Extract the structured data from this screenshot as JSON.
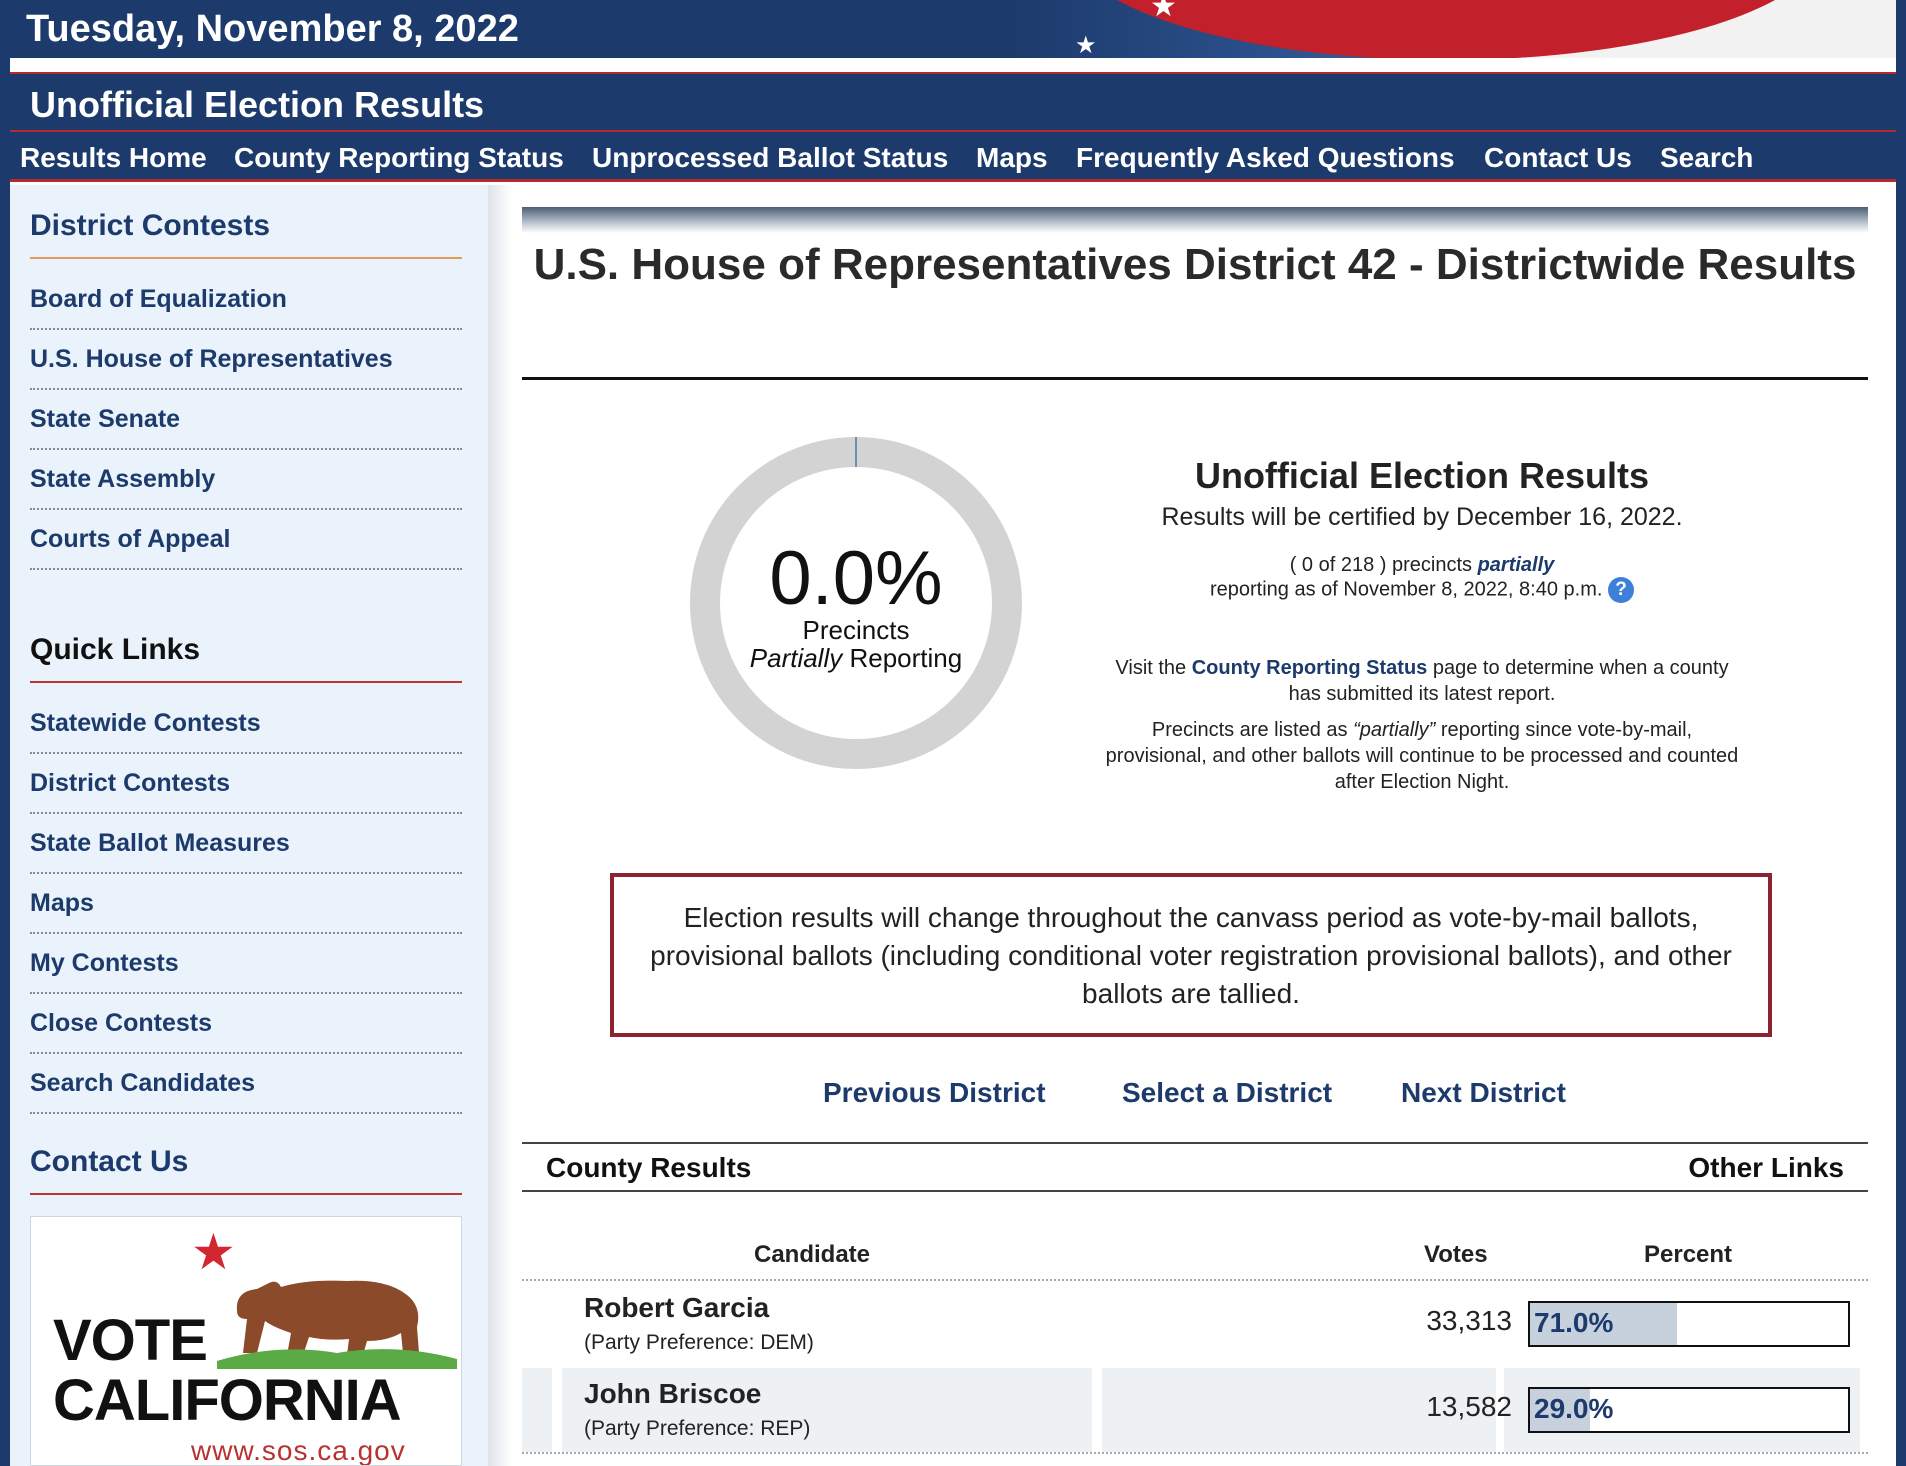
{
  "header": {
    "date": "Tuesday, November 8, 2022",
    "title": "Unofficial Election Results"
  },
  "nav": {
    "items": [
      "Results Home",
      "County Reporting Status",
      "Unprocessed Ballot Status",
      "Maps",
      "Frequently Asked Questions",
      "Contact Us",
      "Search"
    ]
  },
  "sidebar": {
    "district_heading": "District Contests",
    "district_links": [
      "Board of Equalization",
      "U.S. House of Representatives",
      "State Senate",
      "State Assembly",
      "Courts of Appeal"
    ],
    "quick_heading": "Quick Links",
    "quick_links": [
      "Statewide Contests",
      "District Contests",
      "State Ballot Measures",
      "Maps",
      "My Contests",
      "Close Contests",
      "Search Candidates"
    ],
    "contact_heading": "Contact Us",
    "vote_logo": {
      "line1": "VOTE",
      "line2": "CALIFORNIA",
      "url": "www.sos.ca.gov"
    }
  },
  "main": {
    "title": "U.S. House of Representatives District 42 - Districtwide Results",
    "donut": {
      "percent_label": "0.0%",
      "value": 0.0,
      "line1": "Precincts",
      "line2_em": "Partially",
      "line2_rest": " Reporting"
    },
    "info": {
      "heading": "Unofficial Election Results",
      "certified": "Results will be certified by December 16, 2022.",
      "precincts_pre": "( 0 of 218 ) precincts ",
      "precincts_em": "partially",
      "reporting_time": "reporting as of November 8, 2022, 8:40 p.m.",
      "help_glyph": "?",
      "visit_pre": "Visit the ",
      "visit_link": "County Reporting Status",
      "visit_post": " page to determine when a county has submitted its latest report.",
      "partial_pre": "Precincts are listed as ",
      "partial_em": "“partially”",
      "partial_post": " reporting since vote-by-mail, provisional, and other ballots will continue to be processed and counted after Election Night."
    },
    "notice": "Election results will change throughout the canvass period as vote-by-mail ballots, provisional ballots (including conditional voter registration provisional ballots), and other ballots are tallied.",
    "district_nav": {
      "prev": "Previous District",
      "select": "Select a District",
      "next": "Next District"
    },
    "tabs": {
      "county": "County Results",
      "other": "Other Links"
    },
    "table": {
      "headers": {
        "candidate": "Candidate",
        "votes": "Votes",
        "percent": "Percent"
      },
      "rows": [
        {
          "name": "Robert Garcia",
          "party": "(Party Preference: DEM)",
          "votes": "33,313",
          "percent": "71.0%",
          "pct_value": 71.0
        },
        {
          "name": "John Briscoe",
          "party": "(Party Preference: REP)",
          "votes": "13,582",
          "percent": "29.0%",
          "pct_value": 29.0
        }
      ]
    }
  },
  "colors": {
    "navy": "#1c3a6b",
    "accent_red": "#b52a2e",
    "notice_border": "#8b2330",
    "bar_fill": "#c7d1dd"
  }
}
